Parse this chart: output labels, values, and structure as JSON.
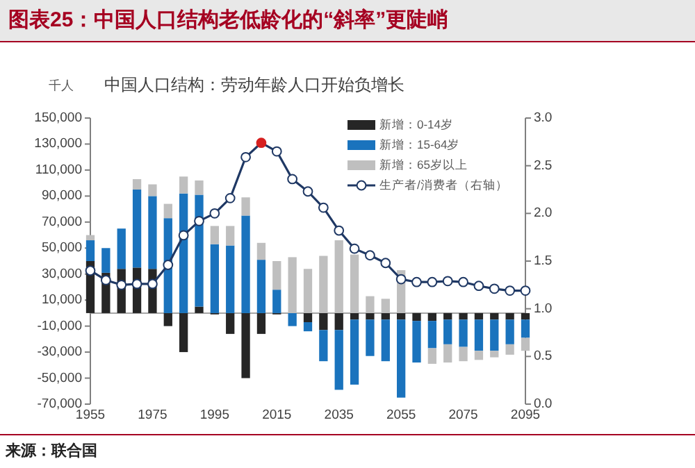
{
  "chart_data": {
    "type": "bar",
    "title": "图表25：中国人口结构老低龄化的“斜率”更陡峭",
    "subtitle": "中国人口结构：劳动年龄人口开始负增长",
    "ylabel": "千人",
    "annotations": [
      "来源：联合国"
    ],
    "categories": [
      "1955",
      null,
      null,
      null,
      "1975",
      null,
      null,
      null,
      "1995",
      null,
      null,
      null,
      "2015",
      null,
      null,
      null,
      "2035",
      null,
      null,
      null,
      "2055",
      null,
      null,
      null,
      "2075",
      null,
      null,
      null,
      "2095"
    ],
    "stacked": true,
    "grid": false,
    "legend": "top right",
    "marker": "circle",
    "line_style": "solid",
    "ylim": [
      -70000,
      150000
    ],
    "yticks": [
      {
        "value": -70000,
        "label": "-70,000"
      },
      {
        "value": -50000,
        "label": "-50,000"
      },
      {
        "value": -30000,
        "label": "-30,000"
      },
      {
        "value": -10000,
        "label": "-10,000"
      },
      {
        "value": 10000,
        "label": "10,000"
      },
      {
        "value": 30000,
        "label": "30,000"
      },
      {
        "value": 50000,
        "label": "50,000"
      },
      {
        "value": 70000,
        "label": "70,000"
      },
      {
        "value": 90000,
        "label": "90,000"
      },
      {
        "value": 110000,
        "label": "110,000"
      },
      {
        "value": 130000,
        "label": "130,000"
      },
      {
        "value": 150000,
        "label": "150,000"
      }
    ],
    "y2lim": [
      0,
      3
    ],
    "y2ticks": [
      {
        "value": 0,
        "label": "0.0"
      },
      {
        "value": 0.5,
        "label": "0.5"
      },
      {
        "value": 1,
        "label": "1.0"
      },
      {
        "value": 1.5,
        "label": "1.5"
      },
      {
        "value": 2,
        "label": "2.0"
      },
      {
        "value": 2.5,
        "label": "2.5"
      },
      {
        "value": 3,
        "label": "3.0"
      }
    ],
    "series": [
      {
        "name": "新增：0-14岁",
        "color": "#262626",
        "values": [
          40000,
          31000,
          34000,
          35000,
          34000,
          -10000,
          -30000,
          5000,
          -1000,
          -16000,
          -50000,
          -16000,
          -1000,
          0,
          -7000,
          -13000,
          -13000,
          -5000,
          -5000,
          -5000,
          -5000,
          -6000,
          -6000,
          -5000,
          -5000,
          -5000,
          -5000,
          -5000,
          -5000
        ]
      },
      {
        "name": "新增：15-64岁",
        "color": "#1a73bd",
        "values": [
          16000,
          19000,
          31000,
          60000,
          56000,
          73000,
          92000,
          86000,
          53000,
          52000,
          75000,
          41000,
          18000,
          -10000,
          -7000,
          -24000,
          -46000,
          -50000,
          -28000,
          -32000,
          -60000,
          -32000,
          -21000,
          -19000,
          -21000,
          -24000,
          -24000,
          -19000,
          -14000
        ]
      },
      {
        "name": "新增：65岁以上",
        "color": "#bfbfbf",
        "values": [
          4000,
          null,
          null,
          8000,
          9000,
          11000,
          13000,
          11000,
          14000,
          15000,
          14000,
          13000,
          22000,
          43000,
          34000,
          44000,
          56000,
          45000,
          13000,
          11000,
          33000,
          null,
          -12000,
          -14000,
          -11000,
          -7000,
          -5000,
          -8000,
          -10000
        ]
      },
      {
        "name": "生产者/消费者（右轴）",
        "type": "line",
        "axis": "y2",
        "color": "#1f3864",
        "colors": [
          "#ffffff",
          "#ffffff",
          "#ffffff",
          "#ffffff",
          "#ffffff",
          "#ffffff",
          "#ffffff",
          "#ffffff",
          "#ffffff",
          "#ffffff",
          "#ffffff",
          "#d62020",
          "#ffffff",
          "#ffffff",
          "#ffffff",
          "#ffffff",
          "#ffffff",
          "#ffffff",
          "#ffffff",
          "#ffffff",
          "#ffffff",
          "#ffffff",
          "#ffffff",
          "#ffffff",
          "#ffffff",
          "#ffffff",
          "#ffffff",
          "#ffffff",
          "#ffffff"
        ],
        "values": [
          1.4,
          1.3,
          1.25,
          1.26,
          1.26,
          1.46,
          1.77,
          1.92,
          2.0,
          2.16,
          2.59,
          2.74,
          2.65,
          2.36,
          2.23,
          2.06,
          1.82,
          1.63,
          1.56,
          1.48,
          1.31,
          1.28,
          1.28,
          1.29,
          1.28,
          1.24,
          1.21,
          1.19,
          1.19
        ]
      }
    ]
  }
}
